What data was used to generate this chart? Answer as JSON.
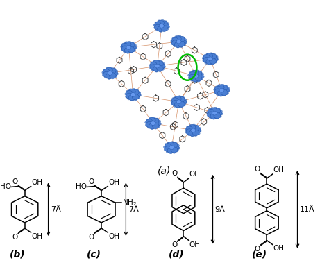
{
  "background_color": "#ffffff",
  "panel_a_label": "(a)",
  "panel_b_label": "(b)",
  "panel_c_label": "(c)",
  "panel_d_label": "(d)",
  "panel_e_label": "(e)",
  "arrow_b": "7Å",
  "arrow_c": "7Å",
  "arrow_d": "9Å",
  "arrow_e": "11Å",
  "label_fontsize": 9,
  "chem_fontsize": 7.5,
  "angstrom_fontsize": 8
}
